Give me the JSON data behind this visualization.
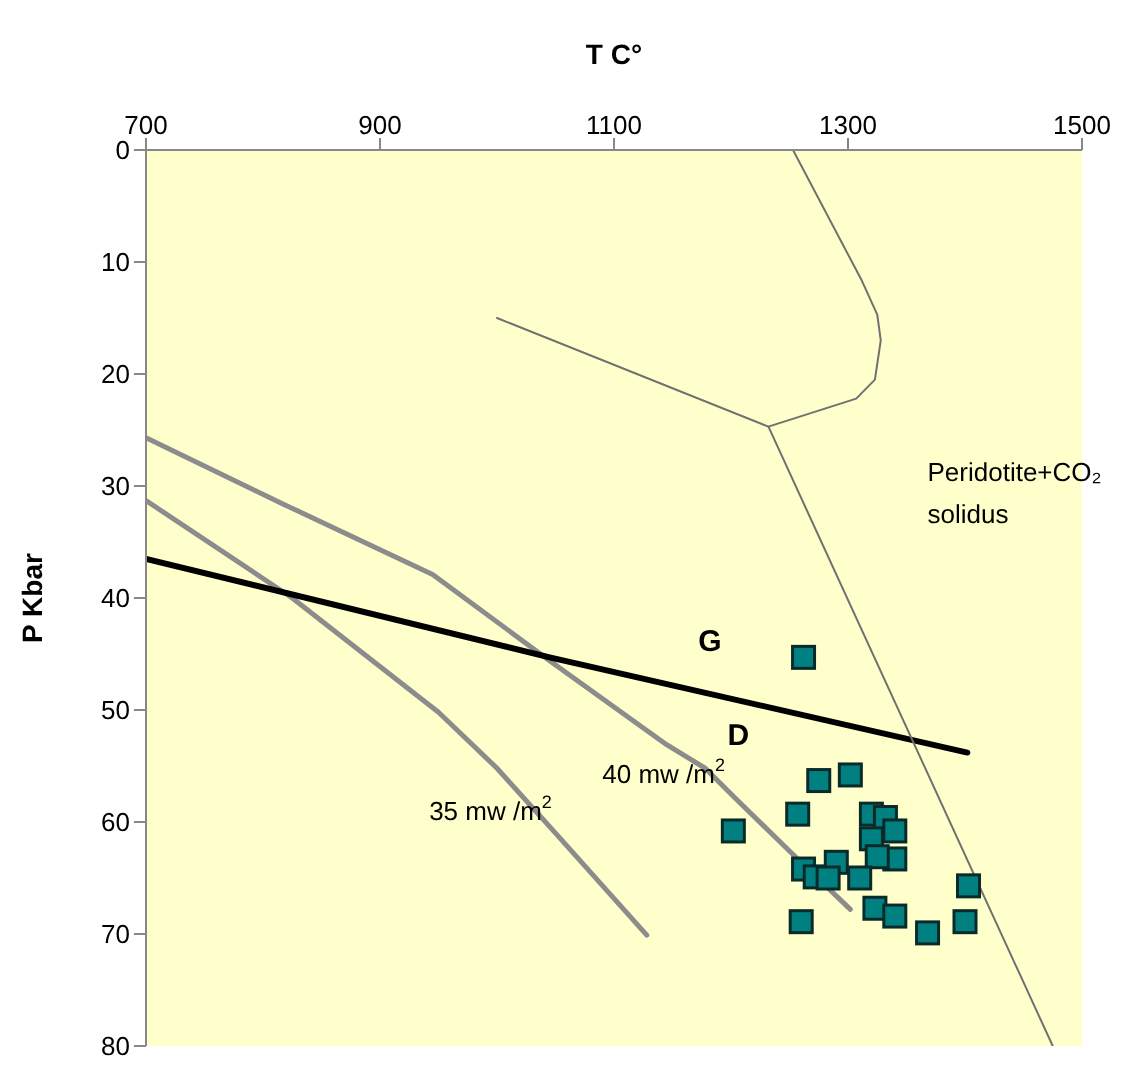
{
  "chart_data": {
    "type": "line",
    "xlabel": "T C°",
    "ylabel": "P Kbar",
    "xlim": [
      700,
      1500
    ],
    "xticks": [
      700,
      900,
      1100,
      1300,
      1500
    ],
    "ylim": [
      80,
      0
    ],
    "yticks": [
      0,
      10,
      20,
      30,
      40,
      50,
      60,
      70,
      80
    ],
    "grid": false,
    "series": [
      {
        "color": "#8c8c8c",
        "marker": "none",
        "line_style": "solid",
        "x": [
          700,
          817,
          945,
          1045,
          1145,
          1178,
          1200,
          1257,
          1302
        ],
        "values": [
          25.7,
          31.6,
          37.9,
          45.6,
          53.1,
          55.2,
          57.5,
          63.3,
          67.8
        ]
      },
      {
        "color": "#8c8c8c",
        "marker": "none",
        "line_style": "solid",
        "x": [
          700,
          825,
          950,
          1000,
          1050,
          1128
        ],
        "values": [
          31.3,
          40,
          50.2,
          55.2,
          61,
          70.1
        ]
      },
      {
        "color": "#000000",
        "marker": "none",
        "line_style": "solid",
        "x": [
          700,
          1045,
          1402
        ],
        "values": [
          36.5,
          45.3,
          53.8
        ]
      },
      {
        "color": "#707070",
        "marker": "none",
        "line_style": "solid",
        "x": [
          1253,
          1312,
          1325,
          1328,
          1323,
          1307,
          1232,
          1475
        ],
        "values": [
          0,
          11.7,
          14.7,
          17,
          20.5,
          22.2,
          24.7,
          80
        ]
      },
      {
        "color": "#707070",
        "marker": "none",
        "line_style": "solid",
        "x": [
          1000,
          1232
        ],
        "values": [
          15,
          24.7
        ]
      },
      {
        "type": "scatter",
        "color": "#008080",
        "marker": "square",
        "x": [
          1262,
          1275,
          1302,
          1257,
          1202,
          1320,
          1332,
          1340,
          1320,
          1340,
          1325,
          1262,
          1272,
          1290,
          1283,
          1310,
          1403,
          1323,
          1340,
          1260,
          1368,
          1400
        ],
        "values": [
          45.3,
          56.3,
          55.8,
          59.3,
          60.8,
          59.3,
          59.6,
          60.8,
          61.5,
          63.3,
          63.1,
          64.2,
          64.9,
          63.6,
          65,
          65,
          65.7,
          67.7,
          68.4,
          68.9,
          69.9,
          68.9
        ]
      }
    ],
    "annotations": [
      "G",
      "D",
      "40 mw /m$^{2}$",
      "35 mw /m$^{2}$",
      "Peridotite+CO₂",
      "solidus"
    ]
  }
}
